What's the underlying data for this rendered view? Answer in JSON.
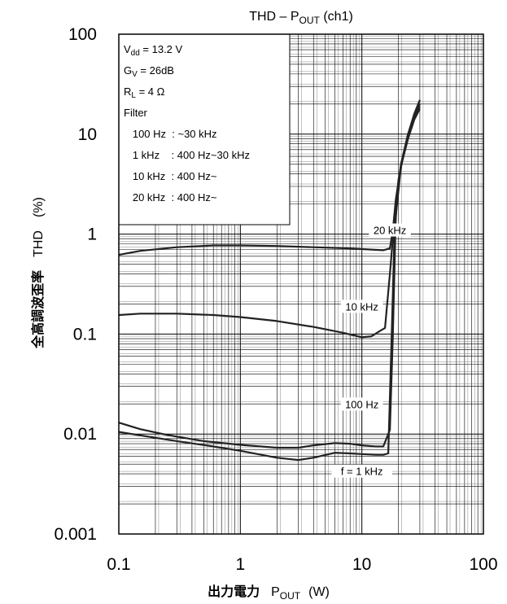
{
  "chart_data": {
    "type": "line",
    "title": {
      "main": "THD – P",
      "sub": "OUT",
      "tail": " (ch1)"
    },
    "xlabel": {
      "jp": "出力電力",
      "main": "P",
      "sub": "OUT",
      "unit": "(W)"
    },
    "ylabel": {
      "jp": "全高調波歪率",
      "main": "THD",
      "unit": "(%)"
    },
    "xscale": "log",
    "yscale": "log",
    "xlim": [
      0.1,
      100
    ],
    "ylim": [
      0.001,
      100
    ],
    "x_ticks": [
      {
        "v": 0.1,
        "label": "0.1"
      },
      {
        "v": 1,
        "label": "1"
      },
      {
        "v": 10,
        "label": "10"
      },
      {
        "v": 100,
        "label": "100"
      }
    ],
    "y_ticks": [
      {
        "v": 100,
        "label": "100"
      },
      {
        "v": 10,
        "label": "10"
      },
      {
        "v": 1,
        "label": "1"
      },
      {
        "v": 0.1,
        "label": "0.1"
      },
      {
        "v": 0.01,
        "label": "0.01"
      },
      {
        "v": 0.001,
        "label": "0.001"
      }
    ],
    "grid": true,
    "legend": {
      "placement": "top-left",
      "lines": [
        {
          "main": "V",
          "sub": "dd",
          "rest": " = 13.2 V"
        },
        {
          "main": "G",
          "sub": "V",
          "rest": " = 26dB"
        },
        {
          "main": "R",
          "sub": "L",
          "rest": " = 4 Ω"
        },
        {
          "main": "Filter",
          "sub": "",
          "rest": ""
        },
        {
          "main": "   100 Hz  : ~30 kHz",
          "sub": "",
          "rest": ""
        },
        {
          "main": "   1 kHz    : 400 Hz~30 kHz",
          "sub": "",
          "rest": ""
        },
        {
          "main": "   10 kHz  : 400 Hz~",
          "sub": "",
          "rest": ""
        },
        {
          "main": "   20 kHz  : 400 Hz~",
          "sub": "",
          "rest": ""
        }
      ]
    },
    "series": [
      {
        "name": "20 kHz",
        "label_at": [
          17,
          1.02
        ],
        "points": [
          [
            0.1,
            0.62
          ],
          [
            0.15,
            0.68
          ],
          [
            0.3,
            0.74
          ],
          [
            0.6,
            0.77
          ],
          [
            1,
            0.77
          ],
          [
            2,
            0.76
          ],
          [
            4,
            0.74
          ],
          [
            8,
            0.72
          ],
          [
            12,
            0.7
          ],
          [
            15,
            0.69
          ],
          [
            17,
            0.72
          ],
          [
            18,
            1.1
          ],
          [
            19,
            2.2
          ],
          [
            21,
            5
          ],
          [
            24,
            10
          ],
          [
            27,
            16
          ],
          [
            30,
            22
          ]
        ]
      },
      {
        "name": "10 kHz",
        "label_at": [
          10,
          0.176
        ],
        "points": [
          [
            0.1,
            0.155
          ],
          [
            0.15,
            0.16
          ],
          [
            0.3,
            0.16
          ],
          [
            0.6,
            0.155
          ],
          [
            1,
            0.148
          ],
          [
            2,
            0.135
          ],
          [
            4,
            0.118
          ],
          [
            7,
            0.103
          ],
          [
            10,
            0.093
          ],
          [
            12,
            0.095
          ],
          [
            14,
            0.107
          ],
          [
            15.5,
            0.115
          ],
          [
            17,
            0.4
          ],
          [
            19,
            2
          ],
          [
            21,
            5
          ],
          [
            24,
            10
          ],
          [
            27,
            15
          ],
          [
            30,
            19
          ]
        ]
      },
      {
        "name": "100 Hz",
        "label_at": [
          10,
          0.0185
        ],
        "points": [
          [
            0.1,
            0.013
          ],
          [
            0.15,
            0.0112
          ],
          [
            0.25,
            0.0098
          ],
          [
            0.5,
            0.0085
          ],
          [
            1,
            0.0078
          ],
          [
            2,
            0.0073
          ],
          [
            3,
            0.0073
          ],
          [
            4,
            0.0077
          ],
          [
            6,
            0.0081
          ],
          [
            8,
            0.008
          ],
          [
            10,
            0.0077
          ],
          [
            13,
            0.0075
          ],
          [
            15,
            0.0075
          ],
          [
            17,
            0.011
          ],
          [
            18,
            0.1
          ],
          [
            19,
            1.5
          ],
          [
            21,
            4.8
          ],
          [
            24,
            9
          ],
          [
            27,
            14
          ],
          [
            30,
            18
          ]
        ]
      },
      {
        "name": "f = 1 kHz",
        "label_at": [
          10,
          0.00395
        ],
        "points": [
          [
            0.1,
            0.0105
          ],
          [
            0.15,
            0.0097
          ],
          [
            0.3,
            0.0085
          ],
          [
            0.6,
            0.0075
          ],
          [
            1,
            0.0068
          ],
          [
            2,
            0.0058
          ],
          [
            3,
            0.0055
          ],
          [
            4,
            0.0058
          ],
          [
            6,
            0.0065
          ],
          [
            8,
            0.0064
          ],
          [
            10,
            0.0063
          ],
          [
            13,
            0.0062
          ],
          [
            15,
            0.0062
          ],
          [
            16.5,
            0.0064
          ],
          [
            17.5,
            0.08
          ],
          [
            18.5,
            0.9
          ],
          [
            20,
            3.5
          ],
          [
            23,
            8
          ],
          [
            26,
            13
          ],
          [
            30,
            20
          ]
        ]
      }
    ]
  }
}
